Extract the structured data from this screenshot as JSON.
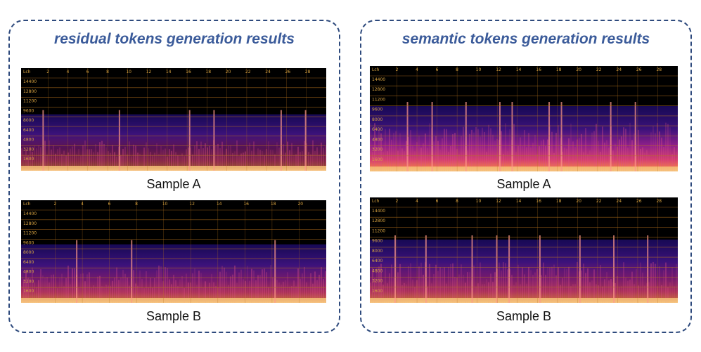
{
  "panels": [
    {
      "title": "residual tokens generation results",
      "samples": [
        {
          "label": "Sample A",
          "corner": "Lch",
          "time_ticks": [
            "2",
            "4",
            "6",
            "8",
            "10",
            "12",
            "14",
            "16",
            "18",
            "20",
            "22",
            "24",
            "26",
            "28"
          ],
          "freq_ticks": [
            "14400",
            "12800",
            "11200",
            "9600",
            "8000",
            "6400",
            "4800",
            "3200",
            "1600"
          ],
          "band_top_frac": 0.45,
          "intensity": "low",
          "vlines": [
            0.07,
            0.32,
            0.55,
            0.63,
            0.85,
            0.93
          ]
        },
        {
          "label": "Sample B",
          "corner": "Lch",
          "time_ticks": [
            "2",
            "4",
            "6",
            "8",
            "10",
            "12",
            "14",
            "16",
            "18",
            "20"
          ],
          "freq_ticks": [
            "14400",
            "12800",
            "11200",
            "9600",
            "8000",
            "6400",
            "4800",
            "3200",
            "1600"
          ],
          "band_top_frac": 0.43,
          "intensity": "medium",
          "vlines": [
            0.18,
            0.36,
            0.83
          ]
        }
      ]
    },
    {
      "title": "semantic tokens generation results",
      "samples": [
        {
          "label": "Sample A",
          "corner": "Lch",
          "time_ticks": [
            "2",
            "4",
            "6",
            "8",
            "10",
            "12",
            "14",
            "16",
            "18",
            "20",
            "22",
            "24",
            "26",
            "28"
          ],
          "freq_ticks": [
            "14400",
            "12800",
            "11200",
            "9600",
            "8000",
            "6400",
            "4800",
            "3200",
            "1600"
          ],
          "band_top_frac": 0.38,
          "intensity": "high",
          "vlines": [
            0.12,
            0.2,
            0.31,
            0.42,
            0.46,
            0.58,
            0.62,
            0.78,
            0.86
          ]
        },
        {
          "label": "Sample B",
          "corner": "Lch",
          "time_ticks": [
            "2",
            "4",
            "6",
            "8",
            "10",
            "12",
            "14",
            "16",
            "18",
            "20",
            "22",
            "24",
            "26",
            "28"
          ],
          "freq_ticks": [
            "14400",
            "12800",
            "11200",
            "9600",
            "8000",
            "6400",
            "4800",
            "3200",
            "1600"
          ],
          "band_top_frac": 0.4,
          "intensity": "medium",
          "vlines": [
            0.08,
            0.18,
            0.33,
            0.41,
            0.45,
            0.55,
            0.68,
            0.79,
            0.9
          ]
        }
      ]
    }
  ],
  "colors": {
    "border": "#2e4a7d",
    "title": "#3b5b9a",
    "grid": "#b8731c",
    "tick_text": "#d9a441"
  }
}
